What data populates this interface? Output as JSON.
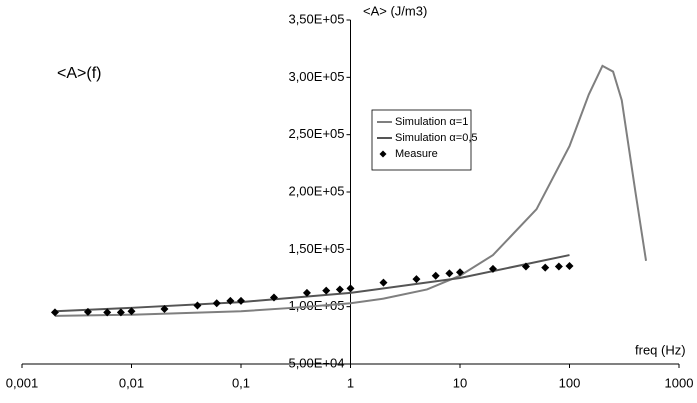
{
  "chart_data": {
    "type": "line",
    "title": "<A>(f)",
    "ylabel": "<A> (J/m3)",
    "xlabel": "freq (Hz)",
    "xscale": "log",
    "xlim": [
      0.001,
      1000
    ],
    "ylim": [
      50000,
      350000
    ],
    "xticks": [
      {
        "value": 0.001,
        "label": "0,001"
      },
      {
        "value": 0.01,
        "label": "0,01"
      },
      {
        "value": 0.1,
        "label": "0,1"
      },
      1,
      10,
      100,
      1000
    ],
    "yticks": [
      {
        "value": 50000,
        "label": "5,00E+04"
      },
      {
        "value": 100000,
        "label": "1,00E+05"
      },
      {
        "value": 150000,
        "label": "1,50E+05"
      },
      {
        "value": 200000,
        "label": "2,00E+05"
      },
      {
        "value": 250000,
        "label": "2,50E+05"
      },
      {
        "value": 300000,
        "label": "3,00E+05"
      },
      {
        "value": 350000,
        "label": "3,50E+05"
      }
    ],
    "series": [
      {
        "name": "Simulation α=1",
        "color": "#7f7f7f",
        "marker": "none",
        "x": [
          0.002,
          0.01,
          0.1,
          0.3,
          1,
          2,
          5,
          10,
          20,
          50,
          100,
          150,
          200,
          250,
          300,
          400,
          500
        ],
        "values": [
          92000,
          93000,
          96000,
          99000,
          103000,
          107000,
          115000,
          127000,
          145000,
          185000,
          240000,
          285000,
          310000,
          305000,
          280000,
          200000,
          140000
        ]
      },
      {
        "name": "Simulation α=0,5",
        "color": "#555555",
        "marker": "none",
        "x": [
          0.002,
          0.01,
          0.1,
          1,
          10,
          100
        ],
        "values": [
          96000,
          99000,
          104000,
          112000,
          125000,
          145000
        ]
      },
      {
        "name": "Measure",
        "color": "#000000",
        "marker": "diamond",
        "x": [
          0.002,
          0.004,
          0.006,
          0.008,
          0.01,
          0.02,
          0.04,
          0.06,
          0.08,
          0.1,
          0.2,
          0.4,
          0.6,
          0.8,
          1,
          2,
          4,
          6,
          8,
          10,
          20,
          40,
          60,
          80,
          100
        ],
        "values": [
          95000,
          95500,
          95000,
          95000,
          96000,
          98000,
          101000,
          103000,
          105000,
          105000,
          108000,
          112000,
          114000,
          115000,
          116000,
          121000,
          124000,
          127000,
          129000,
          130000,
          133000,
          135000,
          134000,
          135000,
          135500
        ]
      }
    ]
  }
}
